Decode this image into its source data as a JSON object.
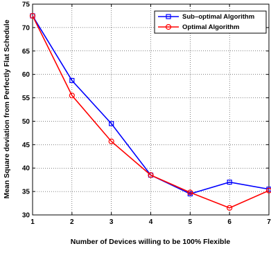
{
  "chart_data": {
    "type": "line",
    "xlabel": "Number of Devices willing to be 100% Flexible",
    "ylabel": "Mean Square deviation from Perfectly Flat Schedule",
    "xlim": [
      1,
      7
    ],
    "ylim": [
      30,
      75
    ],
    "xticks": [
      1,
      2,
      3,
      4,
      5,
      6,
      7
    ],
    "yticks": [
      30,
      35,
      40,
      45,
      50,
      55,
      60,
      65,
      70,
      75
    ],
    "grid": true,
    "legend_position": "top-right",
    "x": [
      1,
      2,
      3,
      4,
      5,
      6,
      7
    ],
    "series": [
      {
        "name": "Sub–optimal Algorithm",
        "color": "#0000ff",
        "marker": "square",
        "values": [
          72.5,
          58.7,
          49.5,
          38.5,
          34.5,
          37.0,
          35.5
        ]
      },
      {
        "name": "Optimal Algorithm",
        "color": "#ff0000",
        "marker": "circle",
        "values": [
          72.5,
          55.5,
          45.7,
          38.5,
          34.8,
          31.5,
          35.2
        ]
      }
    ]
  }
}
